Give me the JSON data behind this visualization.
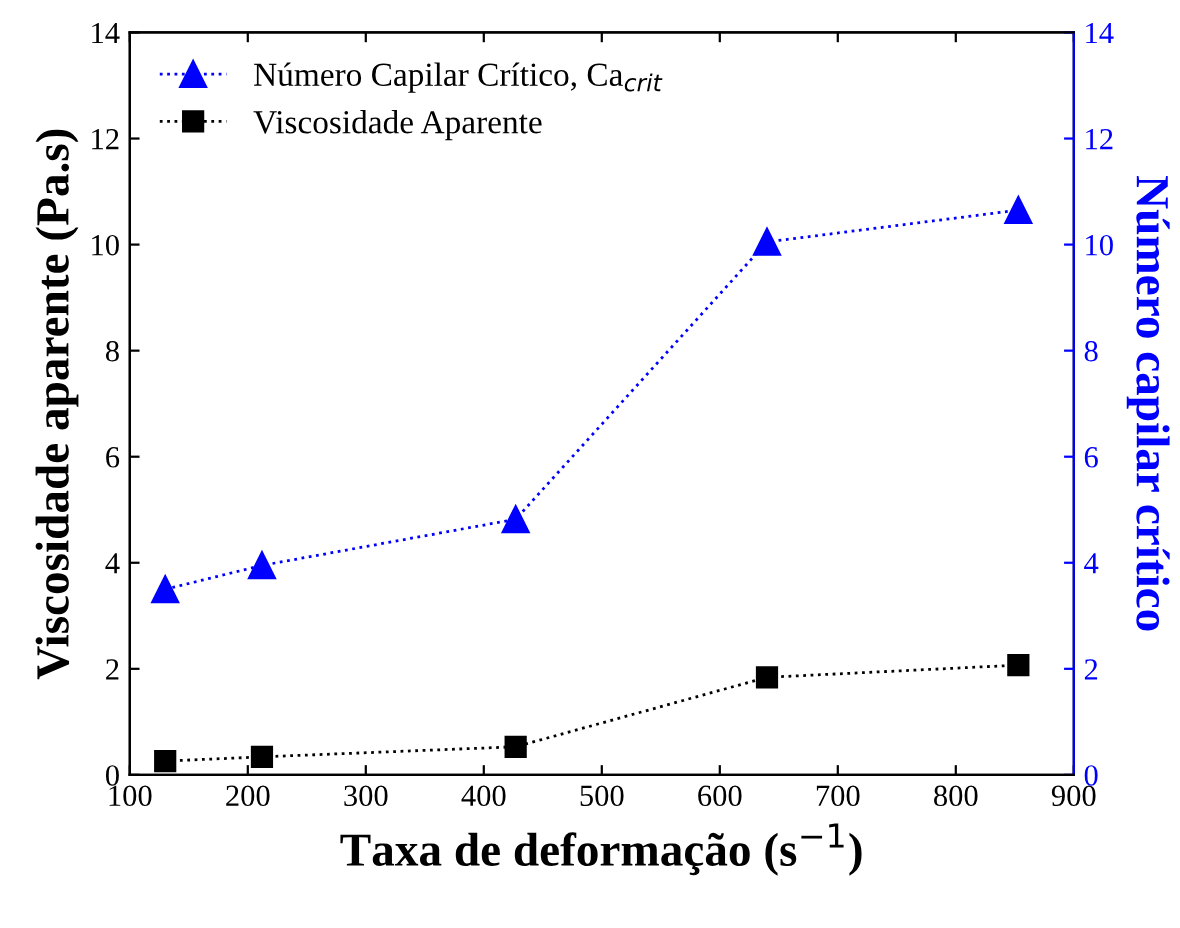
{
  "chart_data": {
    "type": "line",
    "xlabel": "Taxa de deformação (s$^{−1}$)",
    "ylabel": "Viscosidade aparente (Pa.s)",
    "y2label": "Número capilar crítico",
    "xlim": [
      100,
      900
    ],
    "xticks": [
      100,
      200,
      300,
      400,
      500,
      600,
      700,
      800,
      900
    ],
    "ylim": [
      0,
      14
    ],
    "yticks": [
      0,
      2,
      4,
      6,
      8,
      10,
      12,
      14
    ],
    "y2lim": [
      0,
      14
    ],
    "y2ticks": [
      0,
      2,
      4,
      6,
      8,
      10,
      12,
      14
    ],
    "x": [
      130,
      212,
      427,
      640,
      853
    ],
    "legend": "top left",
    "grid": false,
    "line_style": "dotted",
    "series": [
      {
        "name": "Número Capilar Crítico, Ca$_{crit}$",
        "color": "#0000ff",
        "axis": "y2",
        "marker": "triangle",
        "values": [
          3.5,
          3.95,
          4.82,
          10.05,
          10.65
        ]
      },
      {
        "name": "Viscosidade Aparente",
        "color": "#000000",
        "marker": "square",
        "values": [
          0.26,
          0.34,
          0.53,
          1.84,
          2.07
        ]
      }
    ]
  }
}
